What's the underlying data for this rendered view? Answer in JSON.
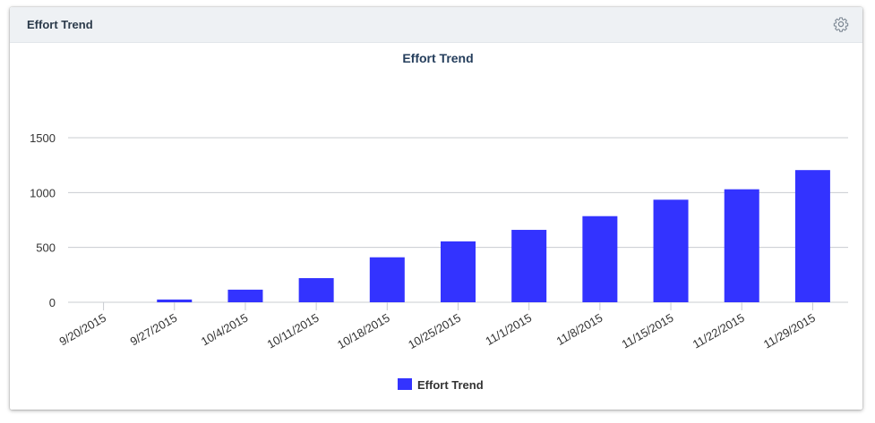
{
  "panel": {
    "title": "Effort Trend",
    "settings_icon": "gear-icon"
  },
  "colors": {
    "bar": "#3333ff",
    "grid": "#c8ccd0",
    "title": "#253e5c",
    "header_bg": "#eef1f4"
  },
  "chart_data": {
    "type": "bar",
    "title": "Effort Trend",
    "xlabel": "",
    "ylabel": "",
    "categories": [
      "9/20/2015",
      "9/27/2015",
      "10/4/2015",
      "10/11/2015",
      "10/18/2015",
      "10/25/2015",
      "11/1/2015",
      "11/8/2015",
      "11/15/2015",
      "11/22/2015",
      "11/29/2015"
    ],
    "series": [
      {
        "name": "Effort Trend",
        "values": [
          0,
          25,
          115,
          220,
          410,
          555,
          660,
          785,
          935,
          1030,
          1205
        ]
      }
    ],
    "ylim": [
      0,
      1500
    ],
    "yticks": [
      "0",
      "500",
      "1000",
      "1500"
    ],
    "grid": true,
    "legend": "bottom-center"
  }
}
